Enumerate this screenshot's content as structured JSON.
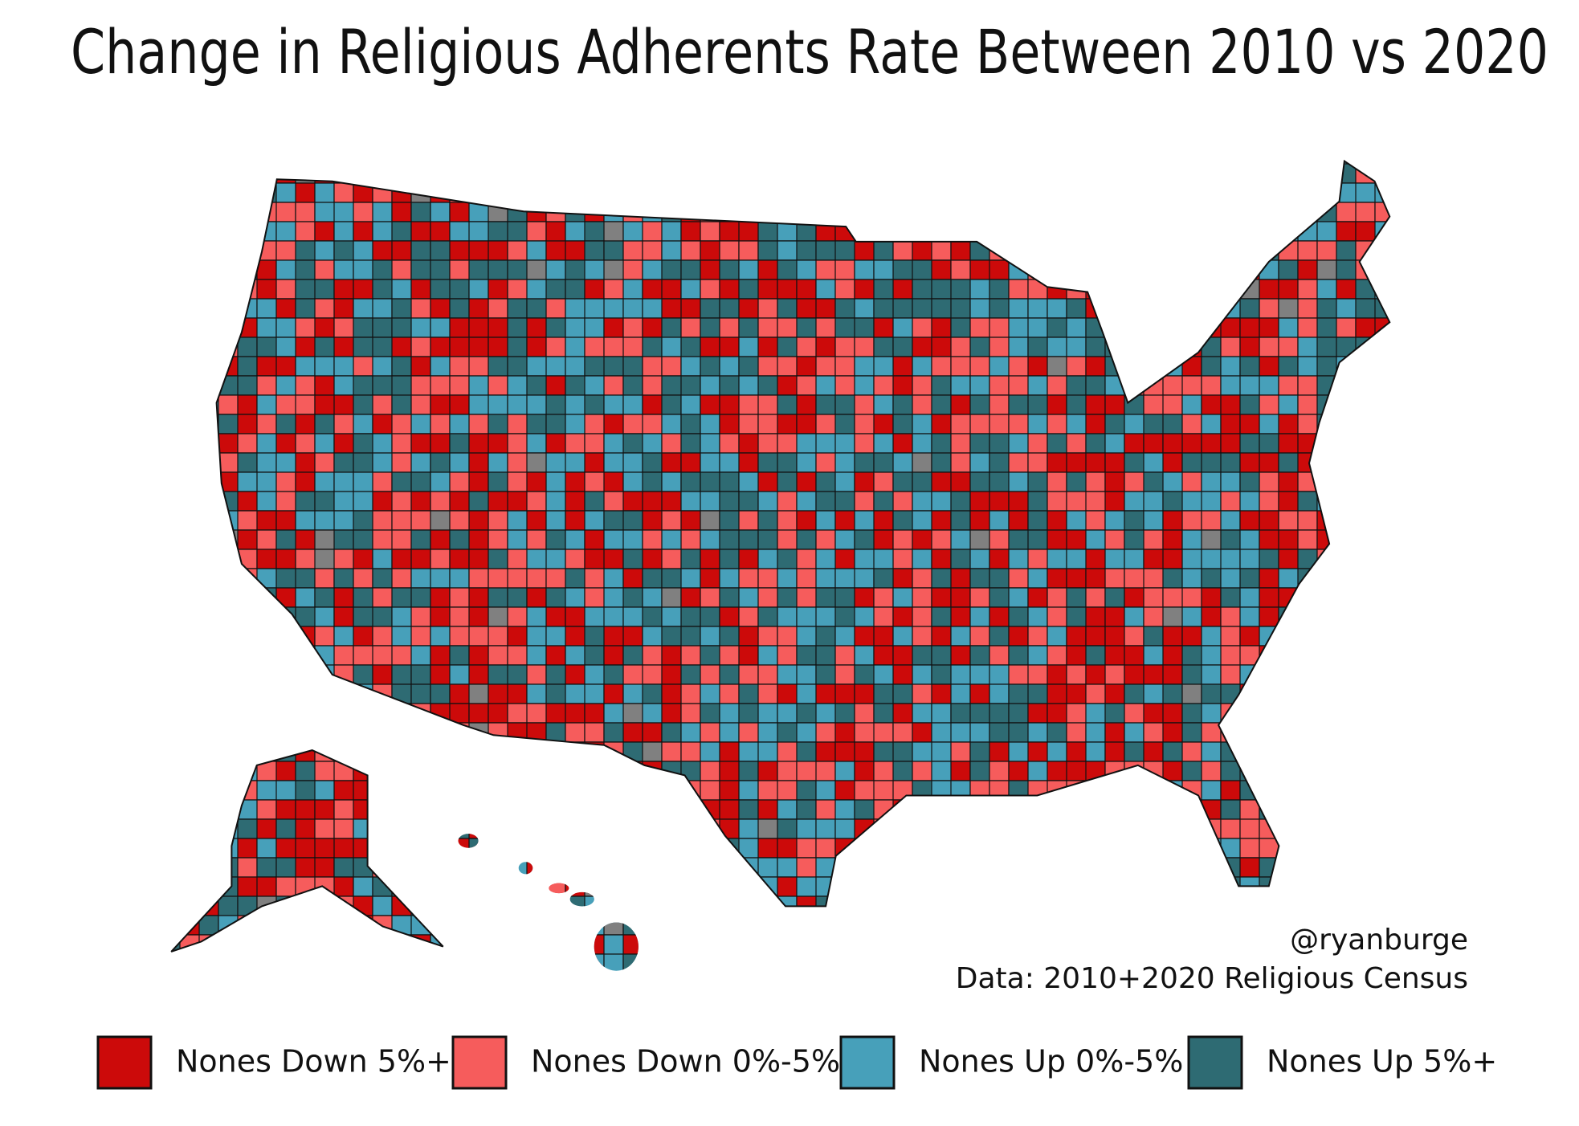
{
  "title": "Change in Religious Adherents Rate Between 2010 vs 2020",
  "credit": {
    "handle": "@ryanburge",
    "source": "Data: 2010+2020 Religious Census"
  },
  "legend": [
    {
      "label": "Nones Down 5%+",
      "color": "#cc0a0a"
    },
    {
      "label": "Nones Down 0%-5%",
      "color": "#f65c5c"
    },
    {
      "label": "Nones Up 0%-5%",
      "color": "#47a0ba"
    },
    {
      "label": "Nones Up 5%+",
      "color": "#2e6b73"
    }
  ]
}
